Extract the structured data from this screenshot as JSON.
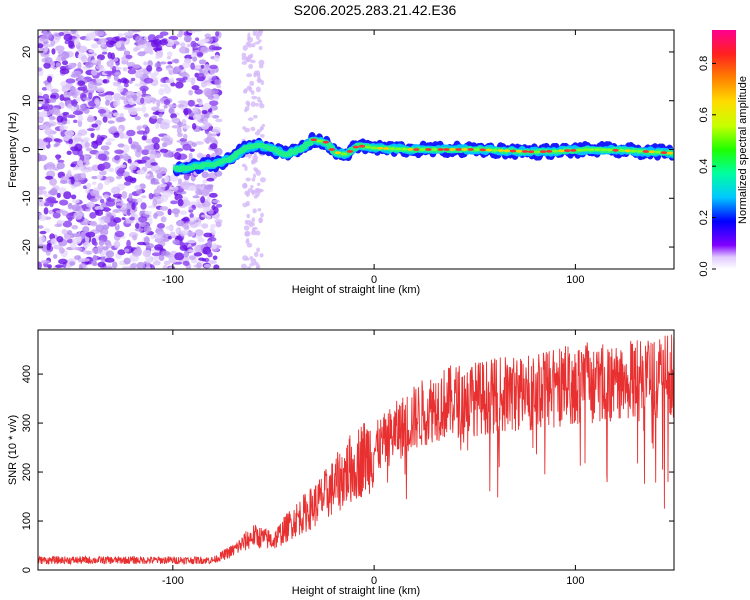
{
  "title": "S206.2025.283.21.42.E36",
  "colors": {
    "snr_line": "#e83030",
    "spectrogram_points": "#7a20e8"
  },
  "chart_data": [
    {
      "type": "heatmap",
      "name": "spectrogram",
      "xlabel": "Height of straight line (km)",
      "ylabel": "Frequency (Hz)",
      "xlim": [
        -167,
        149
      ],
      "ylim": [
        -24.5,
        24.5
      ],
      "xticks": [
        -100,
        0,
        100
      ],
      "xtick_labels": [
        "-100",
        "0",
        "100"
      ],
      "yticks": [
        20,
        10,
        0,
        -10,
        -20
      ],
      "ytick_labels": [
        "20",
        "10",
        "0",
        "-10",
        "-20"
      ],
      "colorbar": {
        "label": "Normalized spectral amplitude",
        "range": [
          0.0,
          0.93
        ],
        "ticks": [
          0.0,
          0.2,
          0.4,
          0.6,
          0.8
        ],
        "tick_labels": [
          "0.0",
          "0.2",
          "0.4",
          "0.6",
          "0.8"
        ]
      },
      "signal_track": [
        {
          "x": -98,
          "f": -4.0
        },
        {
          "x": -88,
          "f": -3.5
        },
        {
          "x": -80,
          "f": -3.0
        },
        {
          "x": -72,
          "f": -2.0
        },
        {
          "x": -65,
          "f": 0.0
        },
        {
          "x": -58,
          "f": 1.0
        },
        {
          "x": -50,
          "f": 0.0
        },
        {
          "x": -44,
          "f": -1.0
        },
        {
          "x": -37,
          "f": 0.0
        },
        {
          "x": -30,
          "f": 2.0
        },
        {
          "x": -24,
          "f": 1.5
        },
        {
          "x": -20,
          "f": -0.5
        },
        {
          "x": -14,
          "f": -1.0
        },
        {
          "x": -8,
          "f": 0.8
        },
        {
          "x": 0,
          "f": 0.3
        },
        {
          "x": 20,
          "f": 0.0
        },
        {
          "x": 50,
          "f": 0.0
        },
        {
          "x": 80,
          "f": -0.5
        },
        {
          "x": 110,
          "f": 0.0
        },
        {
          "x": 140,
          "f": -0.5
        },
        {
          "x": 149,
          "f": -0.8
        }
      ]
    },
    {
      "type": "line",
      "name": "snr",
      "xlabel": "Height of straight line (km)",
      "ylabel": "SNR (10 * v/v)",
      "xlim": [
        -167,
        149
      ],
      "ylim": [
        0,
        490
      ],
      "xticks": [
        -100,
        0,
        100
      ],
      "xtick_labels": [
        "-100",
        "0",
        "100"
      ],
      "yticks": [
        0,
        100,
        200,
        300,
        400
      ],
      "ytick_labels": [
        "0",
        "100",
        "200",
        "300",
        "400"
      ],
      "envelope": [
        {
          "x": -167,
          "y": 20
        },
        {
          "x": -80,
          "y": 20
        },
        {
          "x": -70,
          "y": 40
        },
        {
          "x": -60,
          "y": 70
        },
        {
          "x": -50,
          "y": 60
        },
        {
          "x": -40,
          "y": 100
        },
        {
          "x": -30,
          "y": 130
        },
        {
          "x": -20,
          "y": 170
        },
        {
          "x": -10,
          "y": 215
        },
        {
          "x": 0,
          "y": 245
        },
        {
          "x": 10,
          "y": 280
        },
        {
          "x": 20,
          "y": 310
        },
        {
          "x": 30,
          "y": 335
        },
        {
          "x": 40,
          "y": 345
        },
        {
          "x": 60,
          "y": 355
        },
        {
          "x": 80,
          "y": 365
        },
        {
          "x": 100,
          "y": 380
        },
        {
          "x": 120,
          "y": 385
        },
        {
          "x": 149,
          "y": 395
        }
      ]
    }
  ]
}
